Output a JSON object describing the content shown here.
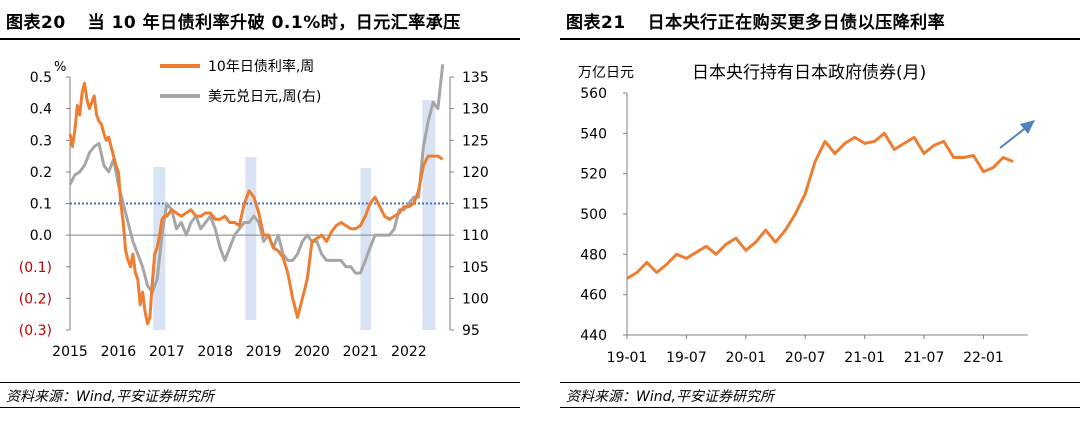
{
  "left": {
    "figure_no": "图表20",
    "title": "当 10 年日债利率升破 0.1%时，日元汇率承压",
    "source": "资料来源：Wind,平安证券研究所"
  },
  "right": {
    "figure_no": "图表21",
    "title": "日本央行正在购买更多日债以压降利率",
    "source": "资料来源：Wind,平安证券研究所"
  },
  "colors": {
    "orange": "#ED7D31",
    "gray": "#A6A6A6",
    "blue_dots": "#4472C4",
    "band": "#DAE3F3",
    "arrow": "#4F81BD",
    "neg_label": "#C00000"
  },
  "chart_data": [
    {
      "type": "line",
      "title": "",
      "ylabel_left_unit": "%",
      "ylim_left": [
        -0.3,
        0.5
      ],
      "ylim_right": [
        95,
        135
      ],
      "xlim": [
        2015,
        2022.85
      ],
      "x_ticks": [
        "2015",
        "2016",
        "2017",
        "2018",
        "2019",
        "2020",
        "2021",
        "2022"
      ],
      "y_left_ticks": [
        "0.5",
        "0.4",
        "0.3",
        "0.2",
        "0.1",
        "0.0",
        "(0.1)",
        "(0.2)",
        "(0.3)"
      ],
      "y_right_ticks": [
        "135",
        "130",
        "125",
        "120",
        "115",
        "110",
        "105",
        "100",
        "95"
      ],
      "reference_line": {
        "axis": "left",
        "value": 0.1,
        "style": "dotted"
      },
      "shaded_periods": [
        [
          2016.72,
          2016.97
        ],
        [
          2018.62,
          2018.85
        ],
        [
          2021.0,
          2021.22
        ],
        [
          2022.28,
          2022.55
        ]
      ],
      "legend_position": "top-center",
      "series": [
        {
          "name": "10年日债利率,周",
          "axis": "left",
          "x": [
            2015.0,
            2015.05,
            2015.1,
            2015.15,
            2015.2,
            2015.25,
            2015.3,
            2015.35,
            2015.4,
            2015.45,
            2015.5,
            2015.55,
            2015.6,
            2015.65,
            2015.7,
            2015.75,
            2015.8,
            2015.85,
            2015.9,
            2015.95,
            2016.0,
            2016.05,
            2016.1,
            2016.15,
            2016.2,
            2016.25,
            2016.3,
            2016.35,
            2016.4,
            2016.45,
            2016.5,
            2016.55,
            2016.6,
            2016.65,
            2016.7,
            2016.75,
            2016.8,
            2016.85,
            2016.9,
            2016.95,
            2017.0,
            2017.1,
            2017.2,
            2017.3,
            2017.4,
            2017.5,
            2017.6,
            2017.7,
            2017.8,
            2017.9,
            2018.0,
            2018.1,
            2018.2,
            2018.3,
            2018.4,
            2018.5,
            2018.6,
            2018.7,
            2018.8,
            2018.9,
            2019.0,
            2019.1,
            2019.2,
            2019.3,
            2019.4,
            2019.5,
            2019.6,
            2019.7,
            2019.8,
            2019.9,
            2020.0,
            2020.1,
            2020.2,
            2020.3,
            2020.4,
            2020.5,
            2020.6,
            2020.7,
            2020.8,
            2020.9,
            2021.0,
            2021.1,
            2021.2,
            2021.3,
            2021.4,
            2021.5,
            2021.6,
            2021.7,
            2021.8,
            2021.9,
            2022.0,
            2022.1,
            2022.2,
            2022.3,
            2022.4,
            2022.5,
            2022.6,
            2022.7
          ],
          "y": [
            0.32,
            0.28,
            0.33,
            0.41,
            0.38,
            0.45,
            0.48,
            0.43,
            0.4,
            0.42,
            0.44,
            0.38,
            0.36,
            0.35,
            0.32,
            0.3,
            0.31,
            0.28,
            0.25,
            0.22,
            0.2,
            0.1,
            0.04,
            -0.05,
            -0.08,
            -0.1,
            -0.06,
            -0.12,
            -0.14,
            -0.22,
            -0.18,
            -0.24,
            -0.28,
            -0.26,
            -0.15,
            -0.06,
            -0.04,
            0.0,
            0.05,
            0.06,
            0.06,
            0.08,
            0.07,
            0.06,
            0.07,
            0.08,
            0.06,
            0.06,
            0.07,
            0.07,
            0.05,
            0.05,
            0.06,
            0.04,
            0.04,
            0.03,
            0.1,
            0.14,
            0.12,
            0.07,
            0.0,
            0.0,
            -0.04,
            -0.05,
            -0.07,
            -0.12,
            -0.2,
            -0.26,
            -0.2,
            -0.14,
            -0.02,
            -0.01,
            0.0,
            -0.02,
            0.01,
            0.03,
            0.04,
            0.03,
            0.02,
            0.02,
            0.03,
            0.06,
            0.1,
            0.12,
            0.09,
            0.06,
            0.05,
            0.06,
            0.07,
            0.09,
            0.09,
            0.1,
            0.14,
            0.22,
            0.25,
            0.25,
            0.25,
            0.24
          ]
        },
        {
          "name": "美元兑日元,周(右)",
          "axis": "right",
          "x": [
            2015.0,
            2015.1,
            2015.2,
            2015.3,
            2015.4,
            2015.5,
            2015.6,
            2015.7,
            2015.8,
            2015.9,
            2016.0,
            2016.1,
            2016.2,
            2016.3,
            2016.4,
            2016.5,
            2016.6,
            2016.7,
            2016.8,
            2016.9,
            2017.0,
            2017.1,
            2017.2,
            2017.3,
            2017.4,
            2017.5,
            2017.6,
            2017.7,
            2017.8,
            2017.9,
            2018.0,
            2018.1,
            2018.2,
            2018.3,
            2018.4,
            2018.5,
            2018.6,
            2018.7,
            2018.8,
            2018.9,
            2019.0,
            2019.1,
            2019.2,
            2019.3,
            2019.4,
            2019.5,
            2019.6,
            2019.7,
            2019.8,
            2019.9,
            2020.0,
            2020.1,
            2020.2,
            2020.3,
            2020.4,
            2020.5,
            2020.6,
            2020.7,
            2020.8,
            2020.9,
            2021.0,
            2021.1,
            2021.2,
            2021.3,
            2021.4,
            2021.5,
            2021.6,
            2021.7,
            2021.8,
            2021.9,
            2022.0,
            2022.1,
            2022.2,
            2022.3,
            2022.4,
            2022.5,
            2022.6,
            2022.7
          ],
          "y": [
            118,
            119.5,
            120,
            121,
            123,
            124,
            124.5,
            121,
            120,
            122,
            118,
            115,
            112,
            109,
            107,
            105,
            102,
            101,
            103,
            110,
            115,
            114,
            111,
            112,
            110,
            112,
            113,
            111,
            112,
            113,
            111,
            108,
            106,
            108,
            110,
            111,
            112,
            112,
            113,
            112,
            109,
            110,
            108,
            110,
            107,
            106,
            106,
            107,
            109,
            110,
            109,
            109,
            107,
            106,
            106,
            106,
            106,
            105,
            105,
            104,
            104,
            106,
            108,
            110,
            110,
            110,
            110,
            111,
            114,
            114,
            115,
            116,
            116,
            124,
            128,
            131,
            130,
            137
          ]
        }
      ]
    },
    {
      "type": "line",
      "title": "日本央行持有日本政府债券(月)",
      "ylabel": "万亿日元",
      "ylim": [
        440,
        560
      ],
      "y_ticks": [
        "560",
        "540",
        "520",
        "500",
        "480",
        "460",
        "440"
      ],
      "x_ticks": [
        "19-01",
        "19-07",
        "20-01",
        "20-07",
        "21-01",
        "21-07",
        "22-01"
      ],
      "annotation": "up-arrow",
      "series": [
        {
          "name": "",
          "x": [
            "19-01",
            "19-02",
            "19-03",
            "19-04",
            "19-05",
            "19-06",
            "19-07",
            "19-08",
            "19-09",
            "19-10",
            "19-11",
            "19-12",
            "20-01",
            "20-02",
            "20-03",
            "20-04",
            "20-05",
            "20-06",
            "20-07",
            "20-08",
            "20-09",
            "20-10",
            "20-11",
            "20-12",
            "21-01",
            "21-02",
            "21-03",
            "21-04",
            "21-05",
            "21-06",
            "21-07",
            "21-08",
            "21-09",
            "21-10",
            "21-11",
            "21-12",
            "22-01",
            "22-02",
            "22-03",
            "22-04"
          ],
          "y": [
            468,
            471,
            476,
            471,
            475,
            480,
            478,
            481,
            484,
            480,
            485,
            488,
            482,
            486,
            492,
            486,
            492,
            500,
            510,
            526,
            536,
            530,
            535,
            538,
            535,
            536,
            540,
            532,
            535,
            538,
            530,
            534,
            536,
            528,
            528,
            529,
            521,
            523,
            528,
            526
          ]
        }
      ]
    }
  ]
}
